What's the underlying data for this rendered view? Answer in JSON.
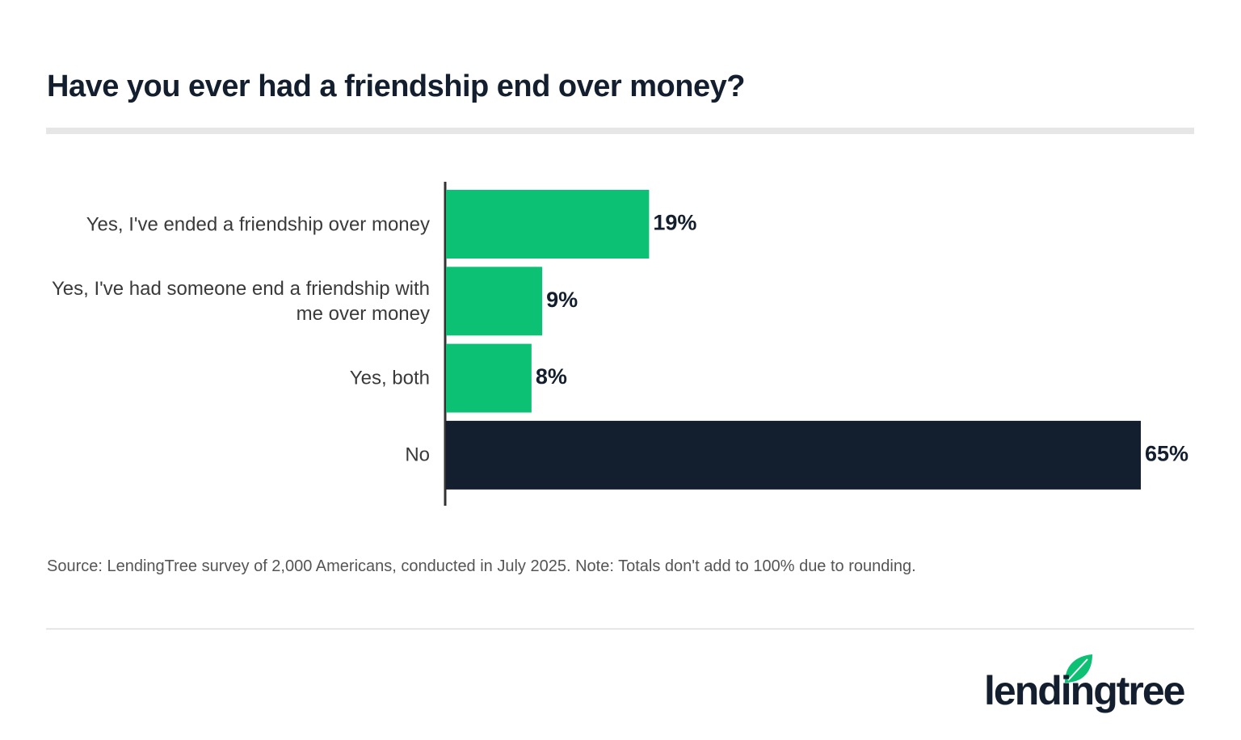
{
  "chart_data": {
    "type": "bar",
    "orientation": "horizontal",
    "title": "Have you ever had a friendship end over money?",
    "categories": [
      "Yes, I've ended a friendship over money",
      "Yes, I've had someone end a friendship with me over money",
      "Yes, both",
      "No"
    ],
    "values": [
      19,
      9,
      8,
      65
    ],
    "value_labels": [
      "19%",
      "9%",
      "8%",
      "65%"
    ],
    "colors": [
      "#0cc174",
      "#0cc174",
      "#0cc174",
      "#131f2e"
    ],
    "source": "Source: LendingTree survey of 2,000 Americans, conducted in July 2025. Note: Totals don't add to 100% due to rounding."
  },
  "logo": "lendingtree"
}
